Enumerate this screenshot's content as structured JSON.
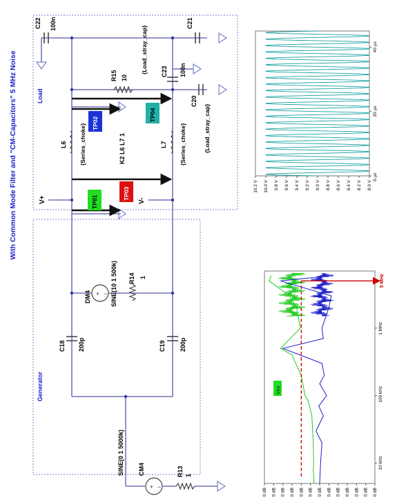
{
  "title": "With Common Mode Filter and \"CM-Capacitors\"  5 MHz Noise",
  "sections": {
    "generator": "Generator",
    "load": "Load"
  },
  "components": {
    "cm4": "CM4",
    "cm4_value": "SINE(0 1 5000k)",
    "r13": "R13",
    "r13_value": "1",
    "dm4": "DM4",
    "dm4_value": "SINE(10 1 500k)",
    "r14": "R14",
    "r14_value": "1",
    "c18": "C18",
    "c18_value": "200p",
    "c19": "C19",
    "c19_value": "200p",
    "l6": "L6",
    "l6_value": "{Series_choke}",
    "l7": "L7",
    "l7_value": "{Series_choke}",
    "k2": "K2 L6 L7 1",
    "r15": "R15",
    "r15_value": "10",
    "c22": "C22",
    "c22_value": "100n",
    "c21": "C21",
    "c21_value": "{Load_stray_cap}",
    "c23": "C23",
    "c23_value": "100n",
    "c20": "C20",
    "c20_value": "{Load_stray_cap}"
  },
  "nodes": {
    "vplus": "V+",
    "vminus": "V-"
  },
  "test_points": [
    {
      "label": "TP01",
      "color": "#22dd22"
    },
    {
      "label": "TP02",
      "color": "#1a32d8"
    },
    {
      "label": "TP03",
      "color": "#dd1111"
    },
    {
      "label": "TP04",
      "color": "#20b0a8"
    }
  ],
  "spectrum": {
    "y_ticks": [
      "0 dB",
      "-20 dB",
      "-40 dB",
      "-60 dB",
      "-80 dB",
      "-100 dB",
      "-120 dB",
      "-140 dB",
      "-160 dB",
      "-180 dB",
      "-200 dB",
      "-220 dB",
      "-240 dB"
    ],
    "x_ticks": [
      "10 kHz",
      "100 kHz",
      "1 MHz"
    ],
    "series_tag": "V(n)",
    "marker_label": "5 MHz",
    "colors": {
      "green": "#22cc22",
      "blue": "#1a1acc",
      "marker": "#cc0000"
    }
  },
  "waveform": {
    "y_ticks": [
      "10.2 V",
      "10.0 V",
      "9.8 V",
      "9.6 V",
      "9.4 V",
      "9.2 V",
      "9.0 V",
      "8.8 V",
      "8.6 V",
      "8.4 V",
      "8.2 V",
      "8.0 V"
    ],
    "x_ticks": [
      "0 µs",
      "20 µs",
      "40 µs"
    ],
    "color": "#1aa0a0"
  },
  "chart_data": [
    {
      "type": "line",
      "title": "",
      "xlabel": "",
      "ylabel": "",
      "x_scale": "log",
      "xlim": [
        5000,
        7000000
      ],
      "ylim": [
        -240,
        0
      ],
      "series": [
        {
          "name": "V(n)",
          "color": "#22cc22",
          "x": [
            5000,
            8000,
            10000,
            20000,
            50000,
            80000,
            100000,
            200000,
            300000,
            400000,
            500000,
            1000000,
            2000000,
            3000000,
            5000000,
            6000000
          ],
          "y": [
            -108,
            -106,
            -107,
            -106,
            -103,
            -96,
            -88,
            -80,
            -68,
            -60,
            -35,
            -78,
            -70,
            -55,
            -10,
            -15
          ]
        },
        {
          "color": "#1a1acc",
          "x": [
            5000,
            10000,
            20000,
            30000,
            50000,
            70000,
            100000,
            150000,
            200000,
            300000,
            500000,
            700000,
            1000000,
            2000000,
            3000000,
            5000000,
            6000000
          ],
          "y": [
            -120,
            -122,
            -125,
            -112,
            -128,
            -118,
            -135,
            -120,
            -130,
            -125,
            -40,
            -128,
            -125,
            -140,
            -145,
            -35,
            -150
          ]
        }
      ],
      "markers": [
        {
          "x": 5000000,
          "y": -80,
          "label": "5 MHz"
        }
      ]
    },
    {
      "type": "line",
      "title": "",
      "xlabel": "",
      "ylabel": "",
      "xlim": [
        0,
        45
      ],
      "ylim": [
        8.0,
        10.2
      ],
      "x_unit": "µs",
      "y_unit": "V",
      "series": [
        {
          "color": "#1aa0a0",
          "offset": 9.0,
          "amplitude": 1.0,
          "frequency_mhz": 0.5
        }
      ]
    }
  ]
}
